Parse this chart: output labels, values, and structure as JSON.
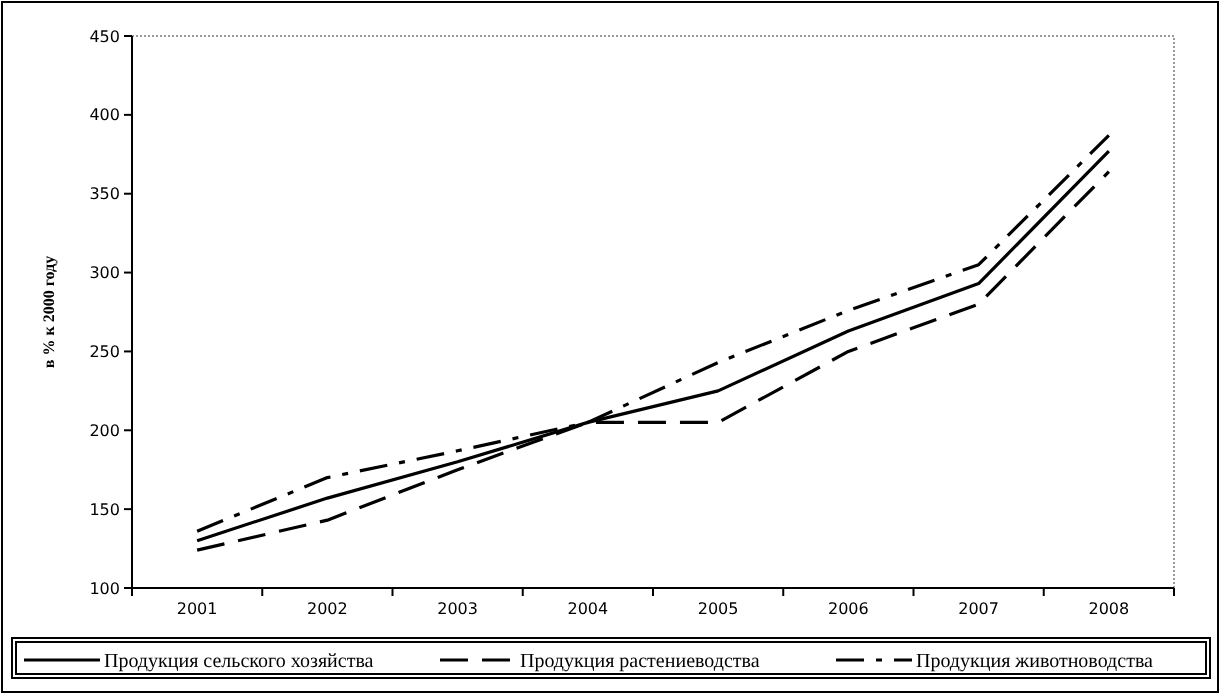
{
  "chart_data": {
    "type": "line",
    "ylabel": "в % к 2000 году",
    "categories": [
      "2001",
      "2002",
      "2003",
      "2004",
      "2005",
      "2006",
      "2007",
      "2008"
    ],
    "series": [
      {
        "name": "Продукция сельского хозяйства",
        "color": "#000000",
        "line_style": "solid",
        "values": [
          130,
          157,
          180,
          205,
          225,
          263,
          293,
          377
        ]
      },
      {
        "name": "Продукция растениеводства",
        "color": "#000000",
        "line_style": "dashed",
        "values": [
          124,
          143,
          175,
          205,
          205,
          250,
          280,
          364
        ]
      },
      {
        "name": "Продукция животноводства",
        "color": "#000000",
        "line_style": "dashdot",
        "values": [
          136,
          170,
          187,
          205,
          243,
          276,
          305,
          387
        ]
      }
    ],
    "ylim": [
      100,
      450
    ],
    "yticks": [
      100,
      150,
      200,
      250,
      300,
      350,
      400,
      450
    ],
    "grid": false,
    "legend": "bottom",
    "marker": "none"
  }
}
